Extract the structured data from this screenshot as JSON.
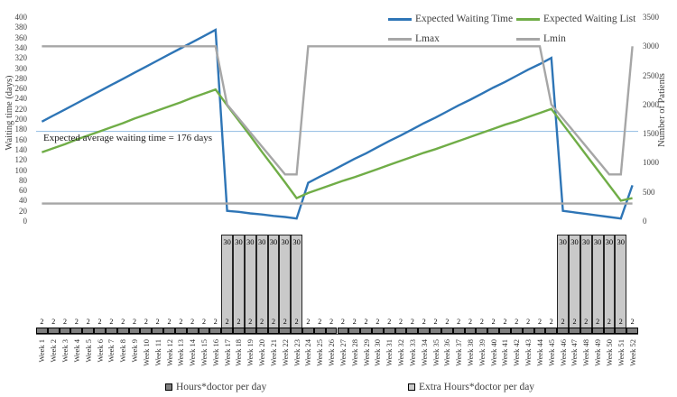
{
  "chart_data": {
    "type": "combo-line-bar",
    "title": "",
    "x_categories": [
      "Week 1",
      "Week 2",
      "Week 3",
      "Week 4",
      "Week 5",
      "Week 6",
      "Week 7",
      "Week 8",
      "Week 9",
      "Week 10",
      "Week 11",
      "Week 12",
      "Week 13",
      "Week 14",
      "Week 15",
      "Week 16",
      "Week 17",
      "Week 18",
      "Week 19",
      "Week 20",
      "Week 21",
      "Week 22",
      "Week 23",
      "Week 24",
      "Week 25",
      "Week 26",
      "Week 27",
      "Week 28",
      "Week 29",
      "Week 30",
      "Week 31",
      "Week 32",
      "Week 33",
      "Week 34",
      "Week 35",
      "Week 36",
      "Week 37",
      "Week 38",
      "Week 39",
      "Week 40",
      "Week 41",
      "Week 42",
      "Week 43",
      "Week 44",
      "Week 45",
      "Week 46",
      "Week 47",
      "Week 48",
      "Week 49",
      "Week 50",
      "Week 51",
      "Week 52"
    ],
    "left_axis": {
      "label": "Waiting time (days)",
      "min": 0,
      "max": 400,
      "tick_step": 20,
      "ticks": [
        0,
        20,
        40,
        60,
        80,
        100,
        120,
        140,
        160,
        180,
        200,
        220,
        240,
        260,
        280,
        300,
        320,
        340,
        360,
        380,
        400
      ]
    },
    "right_axis": {
      "label": "Number of Patients",
      "min": 0,
      "max": 3500,
      "tick_step": 500,
      "ticks": [
        0,
        500,
        1000,
        1500,
        2000,
        2500,
        3000,
        3500
      ]
    },
    "grid": "off",
    "legend_position": "top-right and bottom",
    "series": [
      {
        "name": "Expected Waiting Time",
        "type": "line",
        "axis": "left",
        "color": "#2E75B6",
        "values": [
          195,
          207,
          219,
          231,
          243,
          255,
          267,
          279,
          291,
          303,
          315,
          327,
          339,
          351,
          363,
          375,
          20,
          18,
          15,
          13,
          10,
          8,
          5,
          75,
          87,
          98,
          110,
          122,
          133,
          145,
          157,
          168,
          180,
          192,
          203,
          215,
          227,
          238,
          250,
          262,
          273,
          285,
          297,
          308,
          320,
          20,
          17,
          14,
          11,
          8,
          5,
          70
        ]
      },
      {
        "name": "Expected Waiting List",
        "type": "line",
        "axis": "left",
        "color": "#70AD47",
        "values": [
          135,
          143,
          151,
          160,
          168,
          176,
          184,
          192,
          201,
          209,
          217,
          225,
          233,
          242,
          250,
          258,
          227,
          197,
          167,
          136,
          106,
          76,
          45,
          55,
          63,
          71,
          79,
          86,
          94,
          102,
          110,
          118,
          126,
          134,
          141,
          149,
          157,
          165,
          173,
          181,
          189,
          196,
          204,
          212,
          220,
          190,
          160,
          130,
          100,
          70,
          40,
          45
        ]
      },
      {
        "name": "Lmax",
        "type": "line",
        "axis": "right",
        "color": "#A6A6A6",
        "values": [
          3000,
          3000,
          3000,
          3000,
          3000,
          3000,
          3000,
          3000,
          3000,
          3000,
          3000,
          3000,
          3000,
          3000,
          3000,
          3000,
          2000,
          1760,
          1520,
          1280,
          1040,
          800,
          800,
          3000,
          3000,
          3000,
          3000,
          3000,
          3000,
          3000,
          3000,
          3000,
          3000,
          3000,
          3000,
          3000,
          3000,
          3000,
          3000,
          3000,
          3000,
          3000,
          3000,
          3000,
          2000,
          1760,
          1520,
          1280,
          1040,
          800,
          800,
          3000
        ]
      },
      {
        "name": "Lmin",
        "type": "line",
        "axis": "right",
        "color": "#A6A6A6",
        "values": [
          300,
          300,
          300,
          300,
          300,
          300,
          300,
          300,
          300,
          300,
          300,
          300,
          300,
          300,
          300,
          300,
          300,
          300,
          300,
          300,
          300,
          300,
          300,
          300,
          300,
          300,
          300,
          300,
          300,
          300,
          300,
          300,
          300,
          300,
          300,
          300,
          300,
          300,
          300,
          300,
          300,
          300,
          300,
          300,
          300,
          300,
          300,
          300,
          300,
          300,
          300,
          300
        ]
      },
      {
        "name": "Hours*doctor per day",
        "type": "bar",
        "axis": "hidden",
        "color": "#7F7F7F",
        "values": [
          2,
          2,
          2,
          2,
          2,
          2,
          2,
          2,
          2,
          2,
          2,
          2,
          2,
          2,
          2,
          2,
          2,
          2,
          2,
          2,
          2,
          2,
          2,
          2,
          2,
          2,
          2,
          2,
          2,
          2,
          2,
          2,
          2,
          2,
          2,
          2,
          2,
          2,
          2,
          2,
          2,
          2,
          2,
          2,
          2,
          2,
          2,
          2,
          2,
          2,
          2,
          2
        ]
      },
      {
        "name": "Extra Hours*doctor per day",
        "type": "bar",
        "axis": "hidden",
        "color": "#C9C9C9",
        "values": [
          0,
          0,
          0,
          0,
          0,
          0,
          0,
          0,
          0,
          0,
          0,
          0,
          0,
          0,
          0,
          0,
          30,
          30,
          30,
          30,
          30,
          30,
          30,
          0,
          0,
          0,
          0,
          0,
          0,
          0,
          0,
          0,
          0,
          0,
          0,
          0,
          0,
          0,
          0,
          0,
          0,
          0,
          0,
          0,
          0,
          30,
          30,
          30,
          30,
          30,
          30,
          0
        ]
      }
    ],
    "annotation": {
      "text": "Expected average waiting time = 176 days",
      "value": 176,
      "line_color": "#9DC3E6"
    }
  },
  "axes": {
    "left_title": "Waiting time (days)",
    "right_title": "Number of Patients"
  }
}
